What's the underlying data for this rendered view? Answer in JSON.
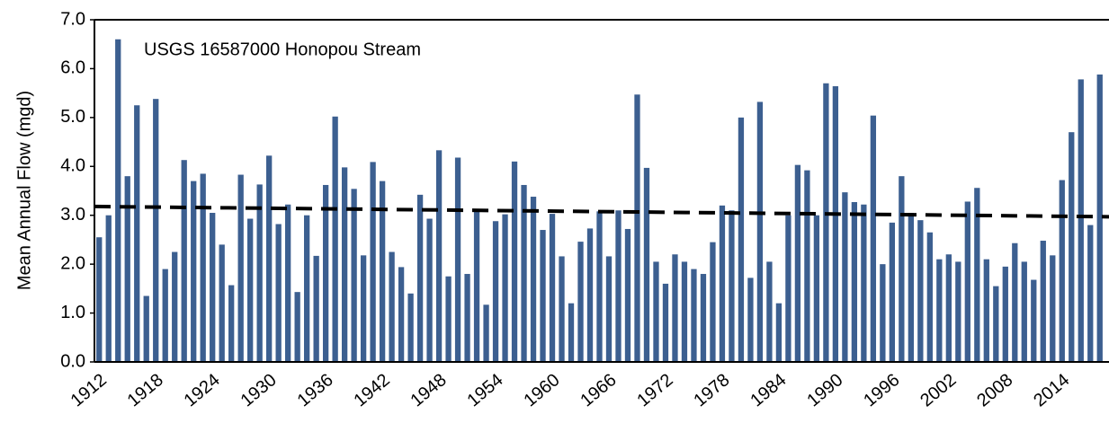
{
  "chart_data": {
    "type": "bar",
    "annotation": "USGS 16587000 Honopou Stream",
    "y_label": "Mean Annual Flow (mgd)",
    "color": "#3c5f90",
    "categories": [
      "1912",
      null,
      null,
      null,
      null,
      null,
      "1918",
      null,
      null,
      null,
      null,
      null,
      "1924",
      null,
      null,
      null,
      null,
      null,
      "1930",
      null,
      null,
      null,
      null,
      null,
      "1936",
      null,
      null,
      null,
      null,
      null,
      "1942",
      null,
      null,
      null,
      null,
      null,
      "1948",
      null,
      null,
      null,
      null,
      null,
      "1954",
      null,
      null,
      null,
      null,
      null,
      "1960",
      null,
      null,
      null,
      null,
      null,
      "1966",
      null,
      null,
      null,
      null,
      null,
      "1972",
      null,
      null,
      null,
      null,
      null,
      "1978",
      null,
      null,
      null,
      null,
      null,
      "1984",
      null,
      null,
      null,
      null,
      null,
      "1990",
      null,
      null,
      null,
      null,
      null,
      "1996",
      null,
      null,
      null,
      null,
      null,
      "2002",
      null,
      null,
      null,
      null,
      null,
      "2008",
      null,
      null,
      null,
      null,
      null,
      "2014",
      null,
      null,
      null,
      null
    ],
    "values": [
      2.55,
      3.0,
      6.6,
      3.8,
      5.25,
      1.35,
      5.38,
      1.9,
      2.25,
      4.13,
      3.7,
      3.85,
      3.05,
      2.4,
      1.57,
      3.83,
      2.93,
      3.63,
      4.22,
      2.82,
      3.22,
      1.43,
      3.0,
      2.17,
      3.62,
      5.02,
      3.98,
      3.54,
      2.18,
      4.09,
      3.7,
      2.25,
      1.94,
      1.4,
      3.42,
      2.93,
      4.33,
      1.75,
      4.18,
      1.8,
      3.1,
      1.17,
      2.88,
      3.02,
      4.1,
      3.62,
      3.38,
      2.7,
      3.03,
      2.16,
      1.2,
      2.46,
      2.73,
      3.08,
      2.16,
      3.1,
      2.72,
      5.47,
      3.97,
      2.05,
      1.6,
      2.2,
      2.05,
      1.9,
      1.8,
      2.45,
      3.2,
      3.1,
      5.0,
      1.72,
      5.32,
      2.05,
      1.2,
      3.0,
      4.03,
      3.92,
      3.0,
      5.7,
      5.64,
      3.47,
      3.27,
      3.22,
      5.04,
      2.0,
      2.85,
      3.8,
      3.05,
      2.9,
      2.65,
      2.1,
      2.2,
      2.05,
      3.28,
      3.56,
      2.1,
      1.55,
      1.95,
      2.43,
      2.05,
      1.68,
      2.48,
      2.18,
      3.72,
      4.7,
      5.78,
      2.8,
      5.88
    ],
    "trend_line": [
      3.18,
      2.97
    ],
    "ylim": [
      0,
      7
    ],
    "yticks": [
      {
        "value": 0,
        "label": "0.0"
      },
      {
        "value": 1,
        "label": "1.0"
      },
      {
        "value": 2,
        "label": "2.0"
      },
      {
        "value": 3,
        "label": "3.0"
      },
      {
        "value": 4,
        "label": "4.0"
      },
      {
        "value": 5,
        "label": "5.0"
      },
      {
        "value": 6,
        "label": "6.0"
      },
      {
        "value": 7,
        "label": "7.0"
      }
    ]
  }
}
